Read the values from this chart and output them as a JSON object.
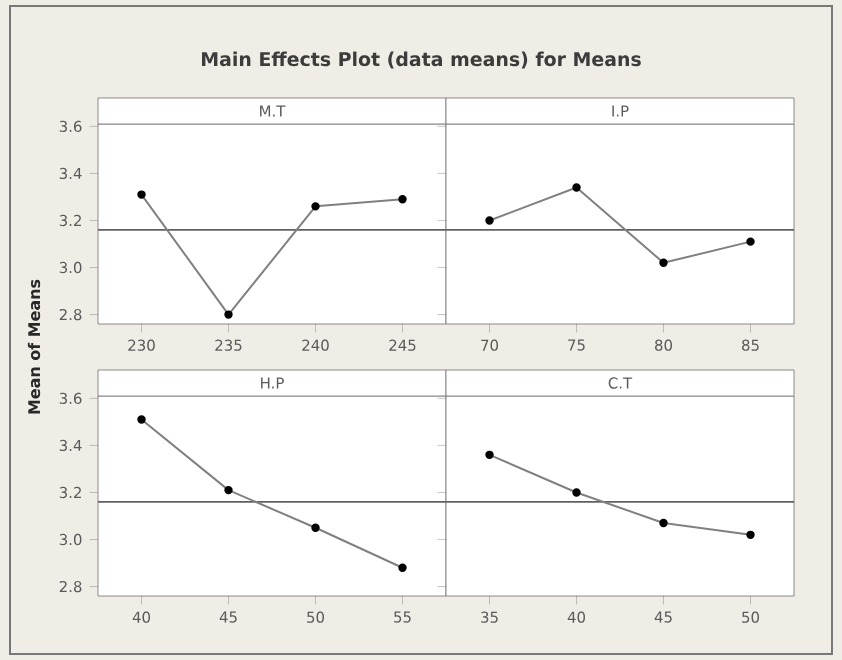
{
  "chart_data": [
    {
      "type": "line",
      "title": "Main Effects Plot (data means) for Means",
      "subtitle": "M.T",
      "ylabel": "Mean of Means",
      "categories": [
        "230",
        "235",
        "240",
        "245"
      ],
      "series": [
        {
          "color": "#808080",
          "values": [
            3.31,
            2.8,
            3.26,
            3.29
          ]
        }
      ],
      "ylim": [
        2.76,
        3.61
      ],
      "yticks": [
        {
          "value": 2.8,
          "label": "2.8"
        },
        {
          "value": 3.0,
          "label": "3.0"
        },
        {
          "value": 3.2,
          "label": "3.2"
        },
        {
          "value": 3.4,
          "label": "3.4"
        },
        {
          "value": 3.6,
          "label": "3.6"
        }
      ],
      "ref_lines": [
        {
          "axis": "y",
          "value": 3.16,
          "color": "#606060"
        }
      ],
      "marker": "circle",
      "grid": false
    },
    {
      "type": "line",
      "subtitle": "I.P",
      "categories": [
        "70",
        "75",
        "80",
        "85"
      ],
      "series": [
        {
          "color": "#808080",
          "values": [
            3.2,
            3.34,
            3.02,
            3.11
          ]
        }
      ],
      "ylim": [
        2.76,
        3.61
      ],
      "yticks": [
        2.8,
        3.0,
        3.2,
        3.4,
        3.6
      ],
      "tick_labels": "x",
      "ref_lines": [
        {
          "axis": "y",
          "value": 3.16,
          "color": "#606060"
        }
      ],
      "marker": "circle",
      "grid": false
    },
    {
      "type": "line",
      "subtitle": "H.P",
      "categories": [
        "40",
        "45",
        "50",
        "55"
      ],
      "series": [
        {
          "color": "#808080",
          "values": [
            3.51,
            3.21,
            3.05,
            2.88
          ]
        }
      ],
      "ylim": [
        2.76,
        3.61
      ],
      "yticks": [
        {
          "value": 2.8,
          "label": "2.8"
        },
        {
          "value": 3.0,
          "label": "3.0"
        },
        {
          "value": 3.2,
          "label": "3.2"
        },
        {
          "value": 3.4,
          "label": "3.4"
        },
        {
          "value": 3.6,
          "label": "3.6"
        }
      ],
      "ref_lines": [
        {
          "axis": "y",
          "value": 3.16,
          "color": "#606060"
        }
      ],
      "marker": "circle",
      "grid": false
    },
    {
      "type": "line",
      "subtitle": "C.T",
      "categories": [
        "35",
        "40",
        "45",
        "50"
      ],
      "series": [
        {
          "color": "#808080",
          "values": [
            3.36,
            3.2,
            3.07,
            3.02
          ]
        }
      ],
      "ylim": [
        2.76,
        3.61
      ],
      "yticks": [
        2.8,
        3.0,
        3.2,
        3.4,
        3.6
      ],
      "tick_labels": "x",
      "ref_lines": [
        {
          "axis": "y",
          "value": 3.16,
          "color": "#606060"
        }
      ],
      "marker": "circle",
      "grid": false
    }
  ]
}
